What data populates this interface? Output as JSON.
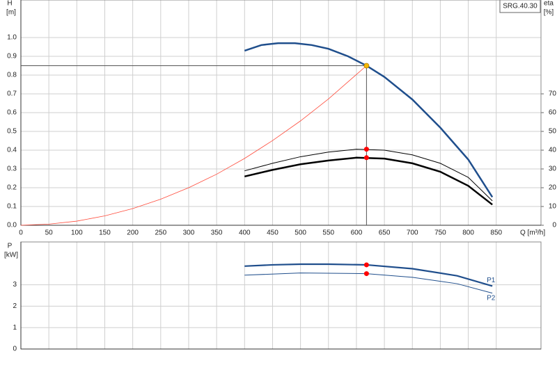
{
  "chart_data": [
    {
      "type": "line",
      "title": "SRG.40.30",
      "y_label": "H",
      "y_unit": "[m]",
      "y2_label": "eta",
      "y2_unit": "[%]",
      "x_label": "Q [m³/h]",
      "xlim": [
        0,
        930
      ],
      "xticks": [
        0,
        50,
        100,
        150,
        200,
        250,
        300,
        350,
        400,
        450,
        500,
        550,
        600,
        650,
        700,
        750,
        800,
        850
      ],
      "ylim": [
        0,
        1.2
      ],
      "yticks": [
        {
          "value": 0,
          "label": "0.0"
        },
        0.1,
        0.2,
        0.3,
        0.4,
        0.5,
        0.6,
        0.7,
        0.8,
        0.9,
        {
          "value": 1,
          "label": "1.0"
        }
      ],
      "y2lim": [
        0,
        120
      ],
      "y2ticks": [
        0,
        10,
        20,
        30,
        40,
        50,
        60,
        70
      ],
      "grid": true,
      "series": [
        {
          "color": "#ff4a3a",
          "width": 0.8,
          "x": [
            0,
            50,
            100,
            150,
            200,
            250,
            300,
            350,
            400,
            450,
            500,
            550,
            618
          ],
          "values": [
            0,
            0.006,
            0.022,
            0.05,
            0.089,
            0.139,
            0.2,
            0.272,
            0.356,
            0.451,
            0.556,
            0.673,
            0.85
          ]
        },
        {
          "color": "#1f4e8c",
          "width": 2.5,
          "x": [
            400,
            430,
            460,
            490,
            520,
            550,
            585,
            618,
            650,
            700,
            750,
            800,
            843
          ],
          "values": [
            0.93,
            0.96,
            0.97,
            0.97,
            0.96,
            0.94,
            0.9,
            0.85,
            0.79,
            0.67,
            0.52,
            0.35,
            0.15
          ]
        },
        {
          "color": "#000000",
          "width": 1,
          "axis": "y2",
          "x": [
            400,
            450,
            500,
            550,
            600,
            650,
            700,
            750,
            800,
            843
          ],
          "values": [
            29,
            33,
            36.5,
            39,
            40.5,
            40,
            37.5,
            33,
            25.5,
            13
          ]
        },
        {
          "color": "#000000",
          "width": 2.5,
          "axis": "y2",
          "x": [
            400,
            450,
            500,
            550,
            600,
            650,
            700,
            750,
            800,
            843
          ],
          "values": [
            26,
            29.5,
            32.5,
            34.5,
            36,
            35.5,
            33,
            28.5,
            21,
            11
          ]
        }
      ],
      "markers": [
        {
          "x": 618,
          "y": 0.85,
          "color": "#f5b800"
        },
        {
          "x": 618,
          "y": 40.5,
          "axis": "y2",
          "color": "#ff0000"
        },
        {
          "x": 618,
          "y": 36,
          "axis": "y2",
          "color": "#ff0000"
        }
      ]
    },
    {
      "type": "line",
      "y_label": "P",
      "y_unit": "[kW]",
      "xlim": [
        0,
        930
      ],
      "xticks": [
        0,
        50,
        100,
        150,
        200,
        250,
        300,
        350,
        400,
        450,
        500,
        550,
        600,
        650,
        700,
        750,
        800,
        850
      ],
      "ylim": [
        0,
        5
      ],
      "yticks": [
        0,
        1,
        2,
        3
      ],
      "grid": true,
      "series": [
        {
          "name": "P1",
          "color": "#1f4e8c",
          "width": 2.2,
          "x": [
            400,
            450,
            500,
            550,
            618,
            700,
            780,
            843
          ],
          "values": [
            3.87,
            3.93,
            3.96,
            3.96,
            3.93,
            3.75,
            3.42,
            2.94
          ]
        },
        {
          "name": "P2",
          "color": "#1f4e8c",
          "width": 1,
          "x": [
            400,
            500,
            618,
            700,
            780,
            843
          ],
          "values": [
            3.45,
            3.55,
            3.52,
            3.35,
            3.05,
            2.61
          ]
        }
      ],
      "markers": [
        {
          "x": 618,
          "y": 3.93,
          "color": "#ff0000"
        },
        {
          "x": 618,
          "y": 3.52,
          "color": "#ff0000"
        }
      ]
    }
  ]
}
